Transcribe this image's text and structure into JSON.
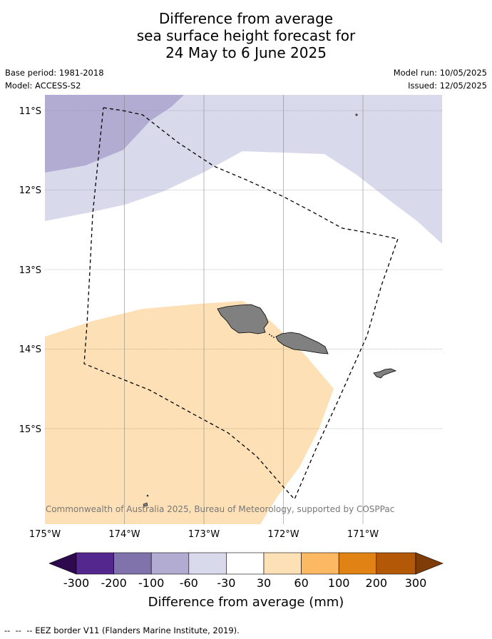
{
  "title": {
    "line1": "Difference from average",
    "line2": "sea surface height forecast for",
    "line3": "24 May to 6 June 2025"
  },
  "meta": {
    "base_period": "Base period: 1981-2018",
    "model": "Model: ACCESS-S2",
    "model_run": "Model run: 10/05/2025",
    "issued": "Issued: 12/05/2025"
  },
  "map": {
    "lat_labels": [
      "11°S",
      "12°S",
      "13°S",
      "14°S",
      "15°S"
    ],
    "lon_labels": [
      "175°W",
      "174°W",
      "173°W",
      "172°W",
      "171°W"
    ],
    "extent": {
      "lon_min": -175.0,
      "lon_max": -170.0,
      "lat_min": -16.2,
      "lat_max": -10.8
    },
    "credit": "© Commonwealth of Australia 2025, Bureau of Meteorology, supported by COSPPac",
    "islands": [
      "Savai'i",
      "Upolu",
      "Tutuila"
    ]
  },
  "colorbar": {
    "ticks": [
      "-300",
      "-200",
      "-100",
      "-60",
      "-30",
      "30",
      "60",
      "100",
      "200",
      "300"
    ],
    "colors": [
      "#2d0a4e",
      "#54278f",
      "#8073ac",
      "#b2abd2",
      "#d8daeb",
      "#ffffff",
      "#fee0b6",
      "#fdb863",
      "#e08214",
      "#b35806",
      "#7f3b08"
    ],
    "label": "Difference from average (mm)"
  },
  "legend": {
    "eez": "EEZ border V11 (Flanders Marine Institute, 2019)."
  }
}
